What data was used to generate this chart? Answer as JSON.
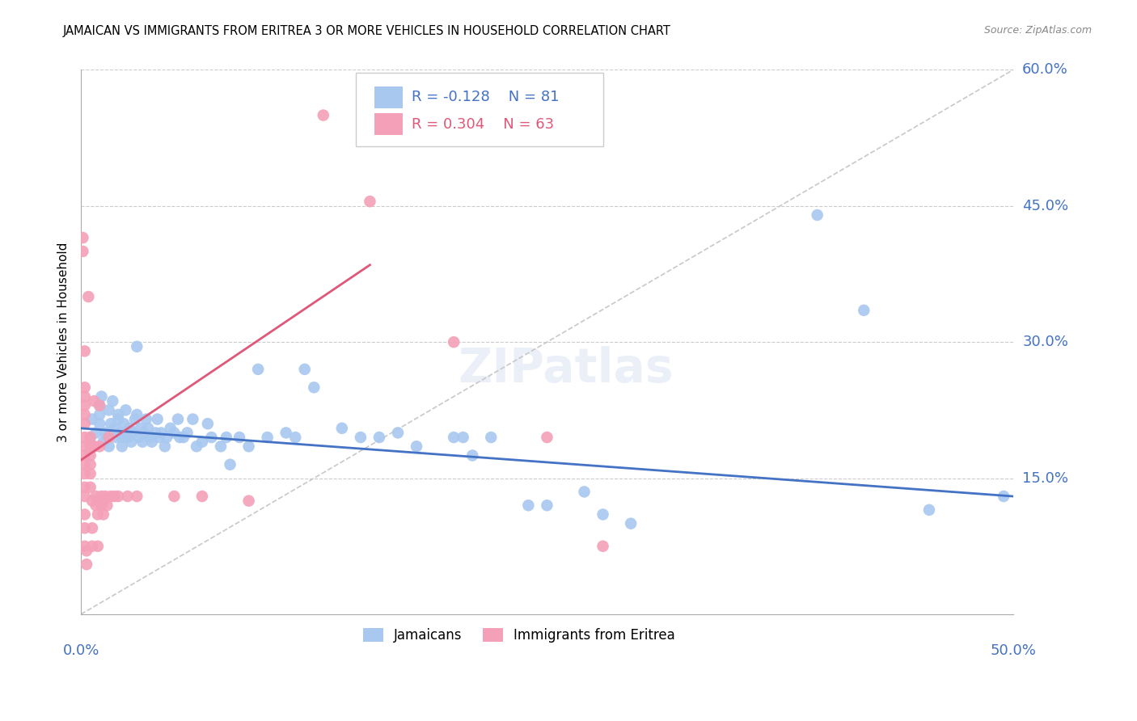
{
  "title": "JAMAICAN VS IMMIGRANTS FROM ERITREA 3 OR MORE VEHICLES IN HOUSEHOLD CORRELATION CHART",
  "source": "Source: ZipAtlas.com",
  "ylabel": "3 or more Vehicles in Household",
  "xmin": 0.0,
  "xmax": 0.5,
  "ymin": 0.0,
  "ymax": 0.6,
  "legend_R_blue": "-0.128",
  "legend_N_blue": "81",
  "legend_R_pink": "0.304",
  "legend_N_pink": "63",
  "blue_color": "#a8c8f0",
  "pink_color": "#f4a0b8",
  "blue_line_color": "#4472c4",
  "pink_line_color": "#e05878",
  "diagonal_color": "#c8c8c8",
  "label_color": "#4472c4",
  "blue_points": [
    [
      0.005,
      0.195
    ],
    [
      0.006,
      0.215
    ],
    [
      0.007,
      0.185
    ],
    [
      0.008,
      0.2
    ],
    [
      0.01,
      0.21
    ],
    [
      0.01,
      0.23
    ],
    [
      0.01,
      0.22
    ],
    [
      0.011,
      0.24
    ],
    [
      0.012,
      0.19
    ],
    [
      0.013,
      0.2
    ],
    [
      0.014,
      0.195
    ],
    [
      0.015,
      0.185
    ],
    [
      0.015,
      0.225
    ],
    [
      0.016,
      0.21
    ],
    [
      0.017,
      0.235
    ],
    [
      0.018,
      0.205
    ],
    [
      0.019,
      0.195
    ],
    [
      0.02,
      0.215
    ],
    [
      0.02,
      0.22
    ],
    [
      0.021,
      0.2
    ],
    [
      0.022,
      0.195
    ],
    [
      0.022,
      0.185
    ],
    [
      0.023,
      0.21
    ],
    [
      0.024,
      0.225
    ],
    [
      0.025,
      0.195
    ],
    [
      0.026,
      0.205
    ],
    [
      0.027,
      0.19
    ],
    [
      0.028,
      0.2
    ],
    [
      0.029,
      0.215
    ],
    [
      0.03,
      0.22
    ],
    [
      0.03,
      0.295
    ],
    [
      0.031,
      0.195
    ],
    [
      0.032,
      0.205
    ],
    [
      0.033,
      0.19
    ],
    [
      0.034,
      0.2
    ],
    [
      0.035,
      0.215
    ],
    [
      0.036,
      0.205
    ],
    [
      0.037,
      0.195
    ],
    [
      0.038,
      0.19
    ],
    [
      0.04,
      0.2
    ],
    [
      0.041,
      0.215
    ],
    [
      0.042,
      0.195
    ],
    [
      0.043,
      0.2
    ],
    [
      0.045,
      0.185
    ],
    [
      0.046,
      0.195
    ],
    [
      0.048,
      0.205
    ],
    [
      0.05,
      0.2
    ],
    [
      0.052,
      0.215
    ],
    [
      0.053,
      0.195
    ],
    [
      0.055,
      0.195
    ],
    [
      0.057,
      0.2
    ],
    [
      0.06,
      0.215
    ],
    [
      0.062,
      0.185
    ],
    [
      0.065,
      0.19
    ],
    [
      0.068,
      0.21
    ],
    [
      0.07,
      0.195
    ],
    [
      0.075,
      0.185
    ],
    [
      0.078,
      0.195
    ],
    [
      0.08,
      0.165
    ],
    [
      0.085,
      0.195
    ],
    [
      0.09,
      0.185
    ],
    [
      0.095,
      0.27
    ],
    [
      0.1,
      0.195
    ],
    [
      0.11,
      0.2
    ],
    [
      0.115,
      0.195
    ],
    [
      0.12,
      0.27
    ],
    [
      0.125,
      0.25
    ],
    [
      0.14,
      0.205
    ],
    [
      0.15,
      0.195
    ],
    [
      0.16,
      0.195
    ],
    [
      0.17,
      0.2
    ],
    [
      0.18,
      0.185
    ],
    [
      0.2,
      0.195
    ],
    [
      0.205,
      0.195
    ],
    [
      0.21,
      0.175
    ],
    [
      0.22,
      0.195
    ],
    [
      0.24,
      0.12
    ],
    [
      0.25,
      0.12
    ],
    [
      0.27,
      0.135
    ],
    [
      0.28,
      0.11
    ],
    [
      0.295,
      0.1
    ],
    [
      0.395,
      0.44
    ],
    [
      0.42,
      0.335
    ],
    [
      0.455,
      0.115
    ],
    [
      0.495,
      0.13
    ]
  ],
  "pink_points": [
    [
      0.001,
      0.415
    ],
    [
      0.001,
      0.4
    ],
    [
      0.002,
      0.29
    ],
    [
      0.002,
      0.25
    ],
    [
      0.002,
      0.24
    ],
    [
      0.002,
      0.23
    ],
    [
      0.002,
      0.22
    ],
    [
      0.002,
      0.21
    ],
    [
      0.002,
      0.195
    ],
    [
      0.002,
      0.185
    ],
    [
      0.002,
      0.175
    ],
    [
      0.002,
      0.165
    ],
    [
      0.002,
      0.155
    ],
    [
      0.002,
      0.14
    ],
    [
      0.002,
      0.13
    ],
    [
      0.002,
      0.11
    ],
    [
      0.002,
      0.095
    ],
    [
      0.002,
      0.075
    ],
    [
      0.003,
      0.07
    ],
    [
      0.003,
      0.055
    ],
    [
      0.004,
      0.35
    ],
    [
      0.005,
      0.195
    ],
    [
      0.005,
      0.185
    ],
    [
      0.005,
      0.175
    ],
    [
      0.005,
      0.165
    ],
    [
      0.005,
      0.155
    ],
    [
      0.005,
      0.14
    ],
    [
      0.006,
      0.125
    ],
    [
      0.006,
      0.095
    ],
    [
      0.006,
      0.075
    ],
    [
      0.007,
      0.235
    ],
    [
      0.007,
      0.185
    ],
    [
      0.008,
      0.13
    ],
    [
      0.008,
      0.12
    ],
    [
      0.009,
      0.11
    ],
    [
      0.009,
      0.075
    ],
    [
      0.01,
      0.23
    ],
    [
      0.01,
      0.185
    ],
    [
      0.011,
      0.13
    ],
    [
      0.011,
      0.12
    ],
    [
      0.012,
      0.11
    ],
    [
      0.012,
      0.125
    ],
    [
      0.013,
      0.13
    ],
    [
      0.014,
      0.12
    ],
    [
      0.015,
      0.195
    ],
    [
      0.016,
      0.13
    ],
    [
      0.018,
      0.13
    ],
    [
      0.02,
      0.13
    ],
    [
      0.025,
      0.13
    ],
    [
      0.03,
      0.13
    ],
    [
      0.05,
      0.13
    ],
    [
      0.065,
      0.13
    ],
    [
      0.09,
      0.125
    ],
    [
      0.13,
      0.55
    ],
    [
      0.155,
      0.455
    ],
    [
      0.2,
      0.3
    ],
    [
      0.25,
      0.195
    ],
    [
      0.28,
      0.075
    ]
  ],
  "blue_trend": [
    0.0,
    0.5,
    0.205,
    0.13
  ],
  "pink_trend": [
    0.0,
    0.155,
    0.17,
    0.385
  ]
}
